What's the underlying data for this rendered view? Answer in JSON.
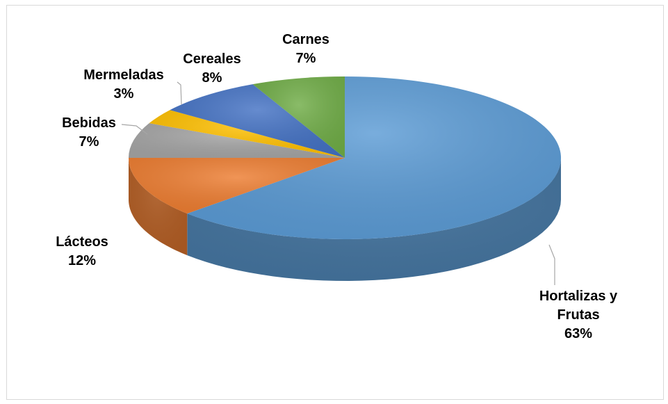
{
  "chart_data": {
    "type": "pie",
    "title": "",
    "style": "3d",
    "categories": [
      "Hortalizas y Frutas",
      "Lácteos",
      "Bebidas",
      "Mermeladas",
      "Cereales",
      "Carnes"
    ],
    "values": [
      63,
      12,
      7,
      3,
      8,
      7
    ],
    "value_labels": [
      "63%",
      "12%",
      "7%",
      "3%",
      "8%",
      "7%"
    ],
    "label_lines": [
      [
        "Hortalizas y",
        "Frutas"
      ],
      [
        "Lácteos"
      ],
      [
        "Bebidas"
      ],
      [
        "Mermeladas"
      ],
      [
        "Cereales"
      ],
      [
        "Carnes"
      ]
    ],
    "colors": [
      "#5b9bd5",
      "#ed7d31",
      "#a5a5a5",
      "#ffc000",
      "#4472c4",
      "#70ad47"
    ],
    "start_angle_deg": 0,
    "direction": "clockwise",
    "legend": "none"
  }
}
